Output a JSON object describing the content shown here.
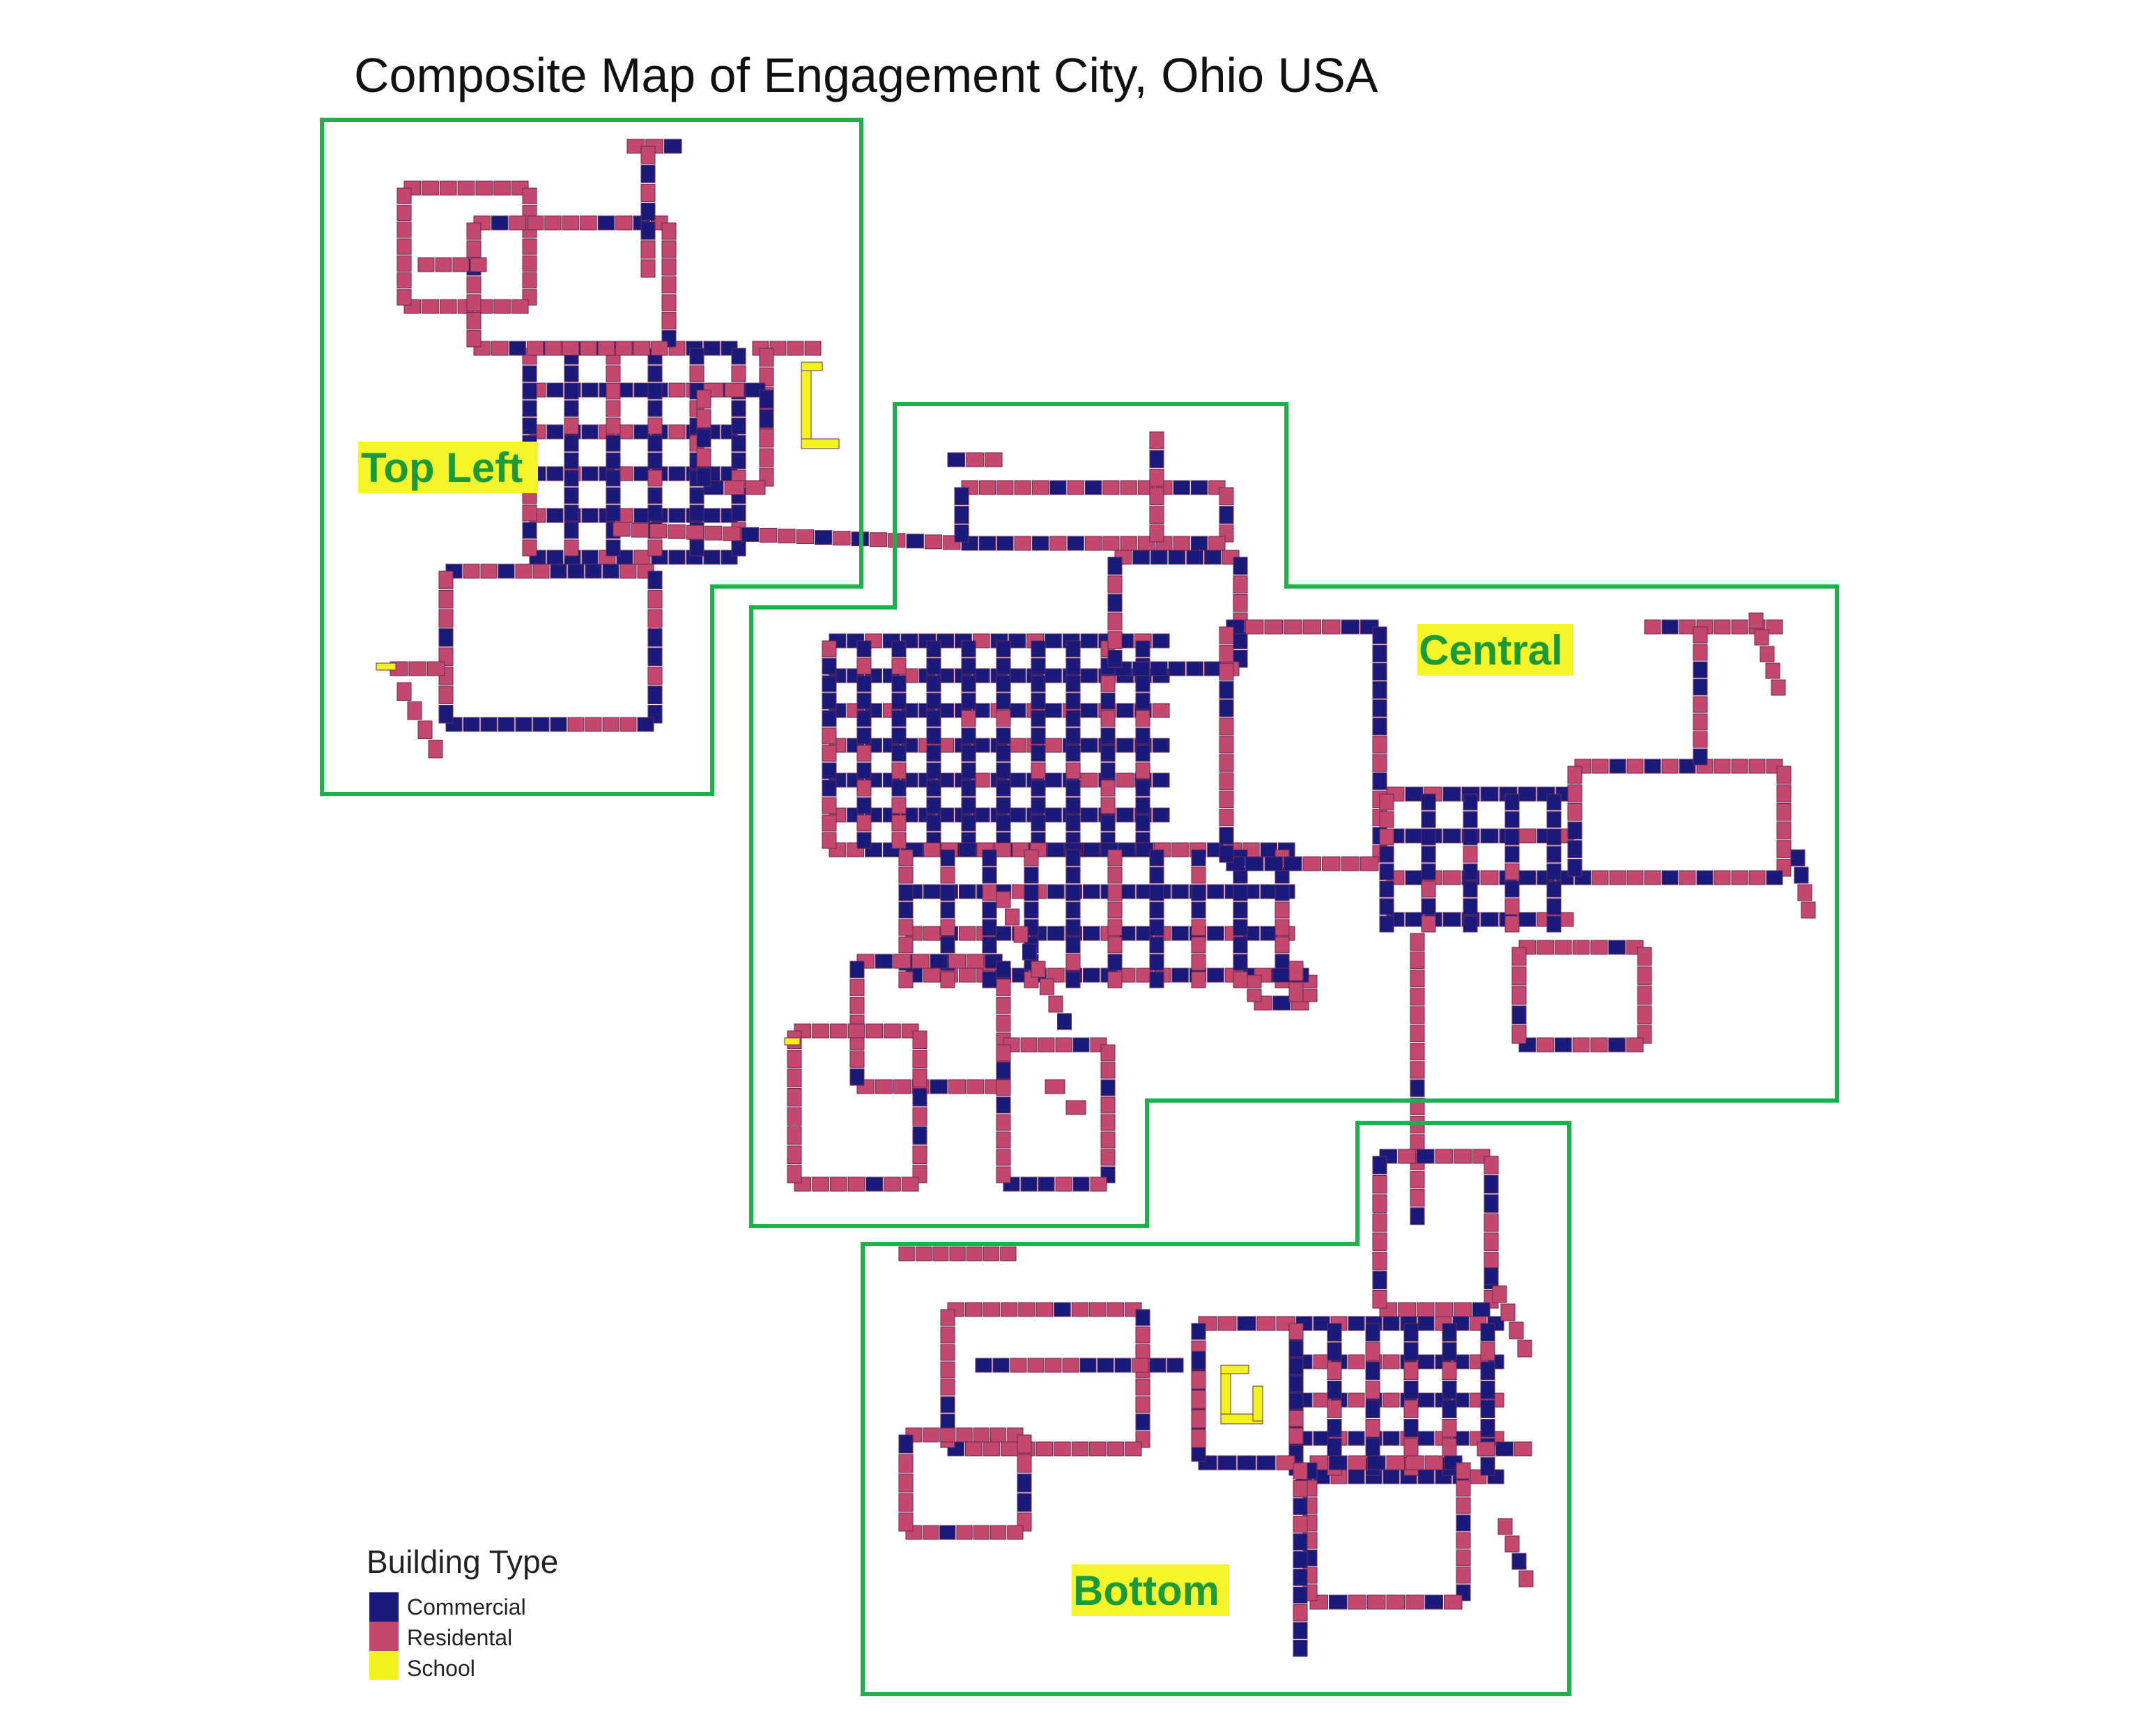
{
  "title": "Composite Map of Engagement City, Ohio USA",
  "regions": [
    {
      "id": "top-left",
      "label": "Top Left"
    },
    {
      "id": "central",
      "label": "Central"
    },
    {
      "id": "bottom",
      "label": "Bottom"
    }
  ],
  "legend": {
    "title": "Building Type",
    "items": [
      {
        "label": "Commercial",
        "color": "#1a1a7a"
      },
      {
        "label": "Residental",
        "color": "#c4476e"
      },
      {
        "label": "School",
        "color": "#f2f21e"
      }
    ]
  },
  "colors": {
    "region_outline": "#1db04b",
    "label_text": "#1a9a3a",
    "label_highlight": "#f6f52a",
    "commercial": "#1a1a7a",
    "residential": "#c4476e",
    "school": "#f2f21e"
  }
}
